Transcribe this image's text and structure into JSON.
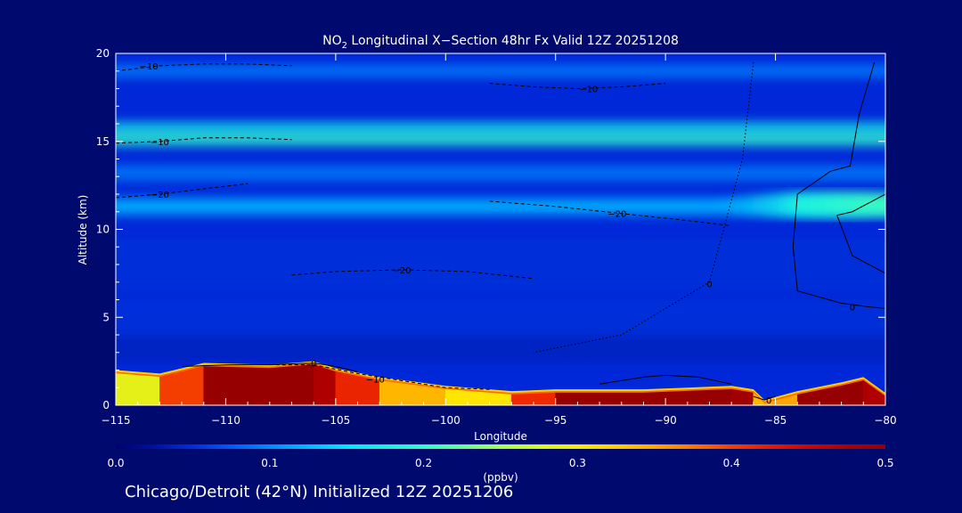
{
  "chart_data": {
    "type": "heatmap",
    "title": {
      "prefix": "NO",
      "subscript": "2",
      "rest": " Longitudinal X−Section 48hr  Fx Valid 12Z 20251208"
    },
    "xlabel": "Longitude",
    "ylabel": "Altitude (km)",
    "xlim": [
      -115,
      -80
    ],
    "ylim": [
      0,
      20
    ],
    "x_ticks": [
      -115,
      -110,
      -105,
      -100,
      -95,
      -90,
      -85,
      -80
    ],
    "x_tick_labels": [
      "−115",
      "−110",
      "−105",
      "−100",
      "−95",
      "−90",
      "−85",
      "−80"
    ],
    "y_ticks": [
      0,
      5,
      10,
      15,
      20
    ],
    "y_tick_labels": [
      "0",
      "5",
      "10",
      "15",
      "20"
    ],
    "colorbar": {
      "label": "(ppbv)",
      "min": 0.0,
      "max": 0.5,
      "ticks": [
        0.0,
        0.1,
        0.2,
        0.3,
        0.4,
        0.5
      ],
      "tick_labels": [
        "0.0",
        "0.1",
        "0.2",
        "0.3",
        "0.4",
        "0.5"
      ]
    },
    "bands": [
      {
        "alt": 19.0,
        "value": 0.09
      },
      {
        "alt": 15.8,
        "value": 0.17
      },
      {
        "alt": 15.1,
        "value": 0.2
      },
      {
        "alt": 13.2,
        "value": 0.09
      },
      {
        "alt": 11.3,
        "value": 0.12
      },
      {
        "alt": 8.0,
        "value": 0.05
      },
      {
        "alt": 5.0,
        "value": 0.05
      },
      {
        "alt": 3.2,
        "value": 0.04
      }
    ],
    "jet_maximum": {
      "lon_from": -88,
      "lon_to": -80,
      "alt": 11.4,
      "value": 0.22
    },
    "surface": {
      "lon": [
        -115,
        -113,
        -111,
        -108,
        -106,
        -105,
        -103,
        -100,
        -97,
        -95,
        -93,
        -91,
        -89,
        -87,
        -86,
        -85.5,
        -84,
        -82,
        -81,
        -80
      ],
      "top": [
        1.8,
        1.6,
        2.2,
        2.1,
        2.3,
        1.9,
        1.4,
        0.9,
        0.6,
        0.7,
        0.7,
        0.7,
        0.8,
        0.9,
        0.7,
        0.1,
        0.6,
        1.1,
        1.4,
        0.5
      ],
      "value": [
        0.28,
        0.3,
        0.5,
        0.5,
        0.5,
        0.45,
        0.38,
        0.3,
        0.32,
        0.5,
        0.5,
        0.5,
        0.5,
        0.5,
        0.48,
        0.2,
        0.5,
        0.5,
        0.5,
        0.45
      ]
    },
    "contours": [
      {
        "style": "dashed",
        "label": "−10",
        "label_at": [
          -113.5,
          19.3
        ],
        "lon": [
          -115,
          -113,
          -111,
          -109,
          -107
        ],
        "alt": [
          19.0,
          19.3,
          19.4,
          19.4,
          19.3
        ]
      },
      {
        "style": "dashed",
        "label": "−10",
        "label_at": [
          -113.0,
          15.0
        ],
        "lon": [
          -115,
          -113,
          -111,
          -109,
          -107
        ],
        "alt": [
          14.9,
          15.0,
          15.2,
          15.2,
          15.1
        ]
      },
      {
        "style": "dashed",
        "label": "−20",
        "label_at": [
          -113.0,
          12.0
        ],
        "lon": [
          -115,
          -113,
          -111,
          -109
        ],
        "alt": [
          11.8,
          12.0,
          12.3,
          12.6
        ]
      },
      {
        "style": "dashed",
        "label": "−10",
        "label_at": [
          -93.5,
          18.0
        ],
        "lon": [
          -98,
          -96,
          -94,
          -92,
          -90
        ],
        "alt": [
          18.3,
          18.1,
          18.0,
          18.1,
          18.3
        ]
      },
      {
        "style": "dashed",
        "label": "−20",
        "label_at": [
          -92.2,
          10.9
        ],
        "lon": [
          -98,
          -95,
          -92,
          -89,
          -87
        ],
        "alt": [
          11.6,
          11.3,
          10.9,
          10.5,
          10.2
        ]
      },
      {
        "style": "dashed",
        "label": "−20",
        "label_at": [
          -102.0,
          7.7
        ],
        "lon": [
          -107,
          -105,
          -102,
          -99,
          -96
        ],
        "alt": [
          7.4,
          7.6,
          7.7,
          7.6,
          7.2
        ]
      },
      {
        "style": "dotted",
        "label": "0",
        "label_at": [
          -88.0,
          6.9
        ],
        "lon": [
          -86,
          -86.5,
          -88,
          -90,
          -92,
          -96
        ],
        "alt": [
          19.5,
          14.0,
          7.0,
          5.5,
          4.0,
          3.0
        ]
      },
      {
        "style": "solid",
        "label": "0",
        "label_at": [
          -81.5,
          5.6
        ],
        "lon": [
          -80,
          -80.8,
          -82.0,
          -84.0,
          -84.2,
          -84.0,
          -82.5,
          -81.6,
          -81.2,
          -80.5
        ],
        "alt": [
          5.5,
          5.6,
          5.8,
          6.5,
          9.0,
          12.0,
          13.3,
          13.6,
          16.5,
          19.5
        ]
      },
      {
        "style": "solid",
        "label": "",
        "label_at": null,
        "lon": [
          -80,
          -81.5,
          -82.2,
          -81.5,
          -80
        ],
        "alt": [
          7.5,
          8.5,
          10.8,
          11.0,
          12.0
        ]
      },
      {
        "style": "dashed",
        "label": "−10",
        "label_at": [
          -103.2,
          1.5
        ],
        "lon": [
          -108,
          -106,
          -104,
          -102,
          -100,
          -98
        ],
        "alt": [
          2.3,
          2.3,
          1.8,
          1.4,
          1.0,
          0.9
        ]
      },
      {
        "style": "solid",
        "label": "0",
        "label_at": [
          -106.0,
          2.4
        ],
        "lon": [
          -112,
          -110,
          -108,
          -106,
          -105,
          -104
        ],
        "alt": [
          2.2,
          2.3,
          2.3,
          2.4,
          2.2,
          1.9
        ]
      },
      {
        "style": "solid",
        "label": "",
        "label_at": null,
        "lon": [
          -93,
          -91,
          -90,
          -88.5,
          -87
        ],
        "alt": [
          1.2,
          1.6,
          1.7,
          1.6,
          1.2
        ]
      },
      {
        "style": "solid",
        "label": "0",
        "label_at": [
          -85.3,
          0.3
        ],
        "lon": [
          -86,
          -85.5,
          -85
        ],
        "alt": [
          0.5,
          0.3,
          0.5
        ]
      }
    ]
  },
  "footer": "Chicago/Detroit (42°N) Initialized 12Z 20251206"
}
